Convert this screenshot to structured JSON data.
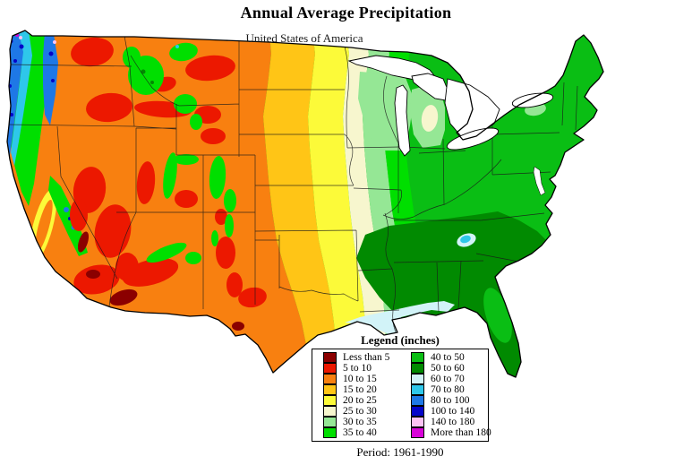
{
  "title": "Annual Average Precipitation",
  "subtitle": "United States of America",
  "legend": {
    "title": "Legend (inches)",
    "period": "Period: 1961-1990",
    "entries": [
      {
        "label": "Less than 5",
        "color": "#8B0000"
      },
      {
        "label": "5 to 10",
        "color": "#EC1800"
      },
      {
        "label": "10 to 15",
        "color": "#F88010"
      },
      {
        "label": "15 to 20",
        "color": "#FFC516"
      },
      {
        "label": "20 to 25",
        "color": "#FCFA39"
      },
      {
        "label": "25 to 30",
        "color": "#F7F6CE"
      },
      {
        "label": "30 to 35",
        "color": "#95E795"
      },
      {
        "label": "35 to 40",
        "color": "#00DF00"
      },
      {
        "label": "40 to 50",
        "color": "#0ABE14"
      },
      {
        "label": "50 to 60",
        "color": "#018A01"
      },
      {
        "label": "60 to 70",
        "color": "#D2F3F8"
      },
      {
        "label": "70 to 80",
        "color": "#2EC7EA"
      },
      {
        "label": "80 to 100",
        "color": "#1E78E6"
      },
      {
        "label": "100 to 140",
        "color": "#0404C8"
      },
      {
        "label": "140 to 180",
        "color": "#FCC3F3"
      },
      {
        "label": "More than 180",
        "color": "#D803D8"
      }
    ]
  },
  "map": {
    "region": "Contiguous United States",
    "outline_color": "#000000"
  }
}
